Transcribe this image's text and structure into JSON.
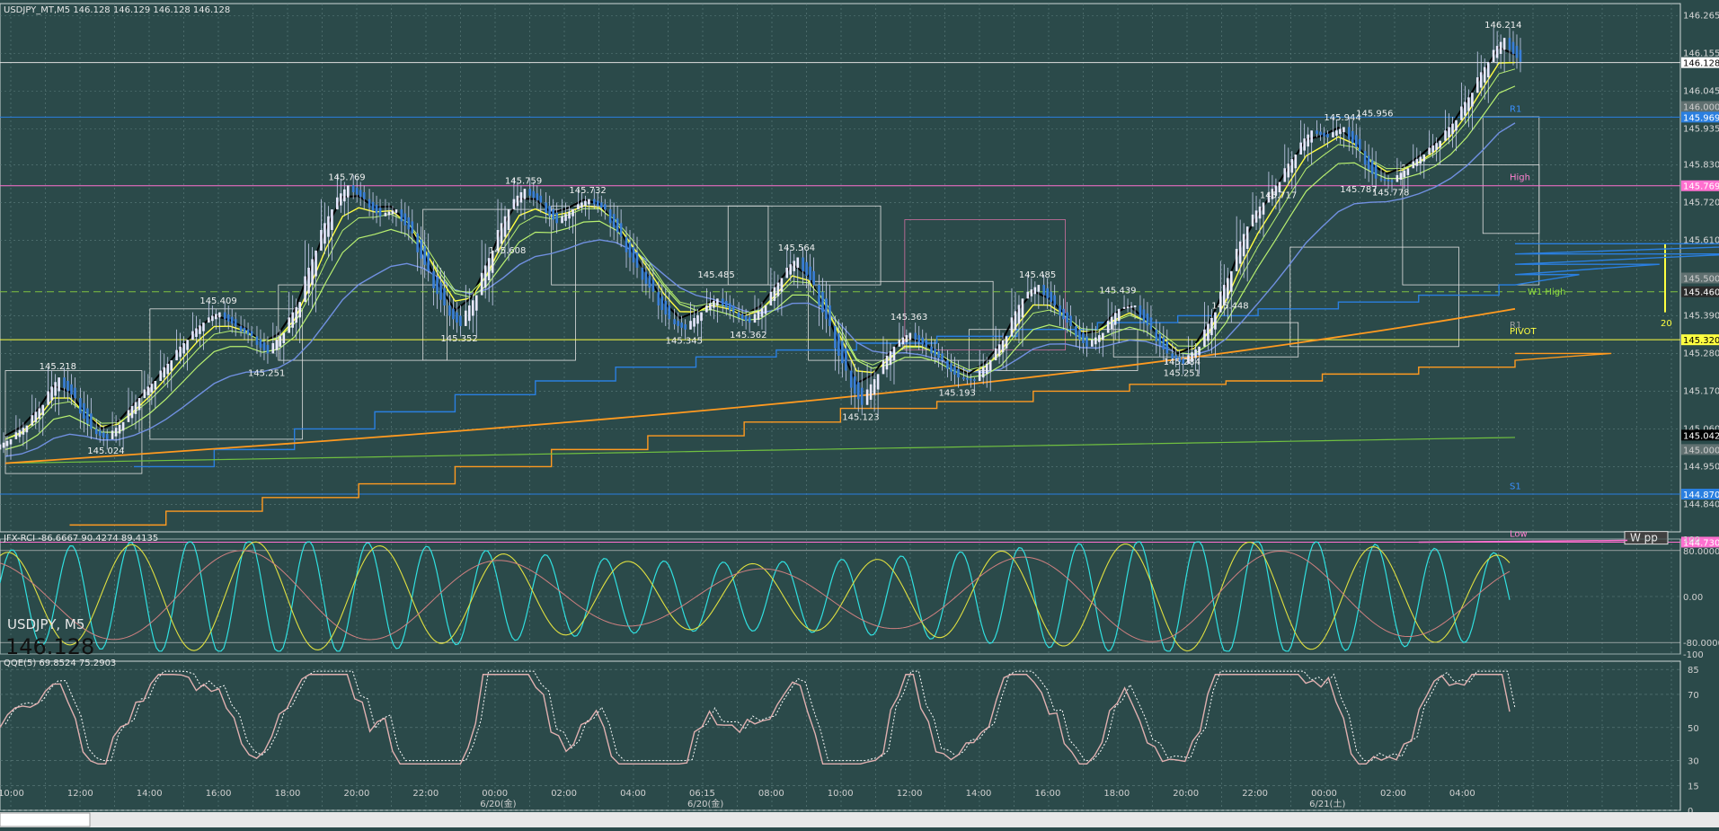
{
  "window": {
    "title": "USDJPY_MT,M5  146.128 146.129 146.128 146.128",
    "symbol_label": "USDJPY, M5",
    "big_price": "146.128"
  },
  "colors": {
    "background": "#2b4a4a",
    "grid": "#5f7f7f",
    "candle_up": "#e8e8ff",
    "candle_down": "#3a7fd8",
    "ma_black": "#000000",
    "ma_yellow": "#ffff40",
    "ma_lightgreen": "#b8f070",
    "ma_blue": "#7090e0",
    "ma_orange": "#ff9a20",
    "band_blue": "#2a7fe0",
    "band_green": "#70c040",
    "pivot_yellow": "#ffff40",
    "high_magenta": "#ff70d0",
    "rci_cyan": "#30e0e0",
    "rci_yellow": "#e0e040",
    "rci_pink": "#d08080",
    "qqe_pink": "#e0b0b0",
    "qqe_dotted": "#ffffff"
  },
  "chart_data": [
    {
      "type": "line",
      "name": "price-panel",
      "title": "USDJPY_MT,M5  146.128 146.129 146.128 146.128",
      "x_labels": [
        "10:00",
        "12:00",
        "14:00",
        "16:00",
        "18:00",
        "20:00",
        "22:00",
        "00:00",
        "02:00",
        "04:00",
        "06:15",
        "08:00",
        "10:00",
        "12:00",
        "14:00",
        "16:00",
        "18:00",
        "20:00",
        "22:00",
        "00:00",
        "02:00",
        "04:00"
      ],
      "date_labels": [
        "6/20(金)",
        "6/20(金)",
        "6/21(土)"
      ],
      "y_ticks": [
        "146.265",
        "146.155",
        "146.045",
        "145.935",
        "145.830",
        "145.720",
        "145.610",
        "145.390",
        "145.280",
        "145.170",
        "145.060",
        "144.950",
        "144.840"
      ],
      "ylim": [
        144.76,
        146.3
      ],
      "close": [
        145.03,
        145.07,
        145.13,
        145.21,
        145.15,
        145.06,
        145.03,
        145.08,
        145.15,
        145.2,
        145.26,
        145.32,
        145.37,
        145.4,
        145.36,
        145.33,
        145.28,
        145.34,
        145.43,
        145.58,
        145.7,
        145.77,
        145.73,
        145.68,
        145.7,
        145.63,
        145.52,
        145.42,
        145.36,
        145.45,
        145.58,
        145.7,
        145.76,
        145.72,
        145.66,
        145.7,
        145.73,
        145.7,
        145.62,
        145.53,
        145.46,
        145.38,
        145.35,
        145.4,
        145.44,
        145.4,
        145.37,
        145.42,
        145.5,
        145.56,
        145.48,
        145.36,
        145.23,
        145.13,
        145.22,
        145.3,
        145.34,
        145.3,
        145.26,
        145.21,
        145.2,
        145.26,
        145.33,
        145.44,
        145.48,
        145.42,
        145.36,
        145.3,
        145.34,
        145.41,
        145.42,
        145.35,
        145.28,
        145.25,
        145.3,
        145.4,
        145.52,
        145.65,
        145.72,
        145.78,
        145.86,
        145.93,
        145.91,
        145.94,
        145.87,
        145.79,
        145.78,
        145.82,
        145.86,
        145.9,
        145.96,
        146.04,
        146.13,
        146.2,
        146.13
      ],
      "high_labels": [
        "145.218",
        "145.024",
        "145.409",
        "145.251",
        "145.769",
        "145.352",
        "145.759",
        "145.732",
        "145.608",
        "145.345",
        "145.485",
        "145.362",
        "145.564",
        "145.123",
        "145.363",
        "145.193",
        "145.485",
        "145.284",
        "145.439",
        "145.251",
        "145.717",
        "145.448",
        "145.944",
        "145.956",
        "145.787",
        "145.778",
        "146.214"
      ],
      "level_labels": [
        "R1",
        "High",
        "W1 High",
        "R1",
        "PIVOT",
        "S1",
        "Low",
        "W pp"
      ],
      "level_prices": [
        "146.128",
        "146.000",
        "145.969",
        "145.769",
        "145.500",
        "145.460",
        "145.320",
        "145.042",
        "145.000",
        "144.870",
        "144.730"
      ],
      "range_value": "20"
    },
    {
      "type": "line",
      "name": "rci-panel",
      "title": "JFX-RCI -86.6667 90.4274 89.4135",
      "y_ticks": [
        "100",
        "80.0000",
        "0.00",
        "-80.0000",
        "-100"
      ],
      "ylim": [
        -100,
        100
      ]
    },
    {
      "type": "line",
      "name": "qqe-panel",
      "title": "QQE(5) 69.8524 75.2903",
      "y_ticks": [
        "85",
        "70",
        "50",
        "30",
        "15",
        "0"
      ],
      "ylim": [
        0,
        90
      ]
    }
  ]
}
